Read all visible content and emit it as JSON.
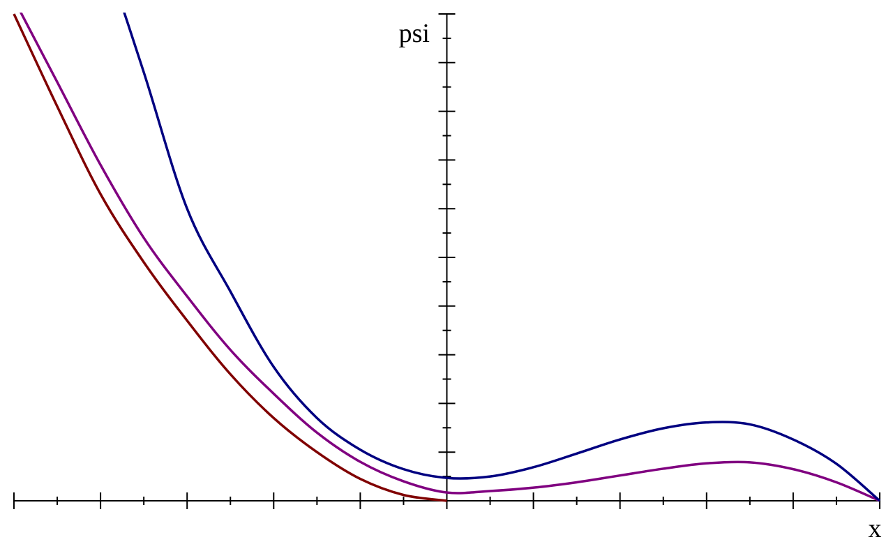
{
  "chart_data": {
    "type": "line",
    "x_label": "x",
    "y_label": "psi",
    "x": [
      -5,
      -4.5,
      -4,
      -3.5,
      -3,
      -2.5,
      -2,
      -1.5,
      -1,
      -0.5,
      0,
      0.5,
      1,
      1.5,
      2,
      2.5,
      3,
      3.5,
      4,
      4.5,
      5
    ],
    "series": [
      {
        "color": "#800000",
        "values": [
          10,
          8.1,
          6.3,
          4.9,
          3.7,
          2.6,
          1.7,
          1.0,
          0.45,
          0.12,
          0,
          null,
          null,
          null,
          null,
          null,
          null,
          null,
          null,
          null,
          null
        ]
      },
      {
        "color": "#800080",
        "values": [
          10.3,
          8.6,
          6.9,
          5.4,
          4.2,
          3.1,
          2.2,
          1.4,
          0.8,
          0.4,
          0.17,
          0.2,
          0.27,
          0.38,
          0.52,
          0.66,
          0.77,
          0.79,
          0.65,
          0.38,
          0
        ]
      },
      {
        "color": "#000080",
        "values": [
          null,
          null,
          11.5,
          8.8,
          6.0,
          4.3,
          2.75,
          1.7,
          1.05,
          0.65,
          0.47,
          0.5,
          0.69,
          0.97,
          1.26,
          1.49,
          1.61,
          1.57,
          1.26,
          0.76,
          0
        ]
      }
    ],
    "xlim": [
      -5,
      5
    ],
    "ylim": [
      0,
      10
    ],
    "xticks": [
      -5,
      -4,
      -3,
      -2,
      -1,
      0,
      1,
      2,
      3,
      4,
      5
    ],
    "xminorticks": [
      -4.5,
      -3.5,
      -2.5,
      -1.5,
      -0.5,
      0.5,
      1.5,
      2.5,
      3.5,
      4.5
    ],
    "yticks": [
      1,
      2,
      3,
      4,
      5,
      6,
      7,
      8,
      9,
      10
    ],
    "yminorticks": [
      0.5,
      1.5,
      2.5,
      3.5,
      4.5,
      5.5,
      6.5,
      7.5,
      8.5,
      9.5
    ]
  }
}
